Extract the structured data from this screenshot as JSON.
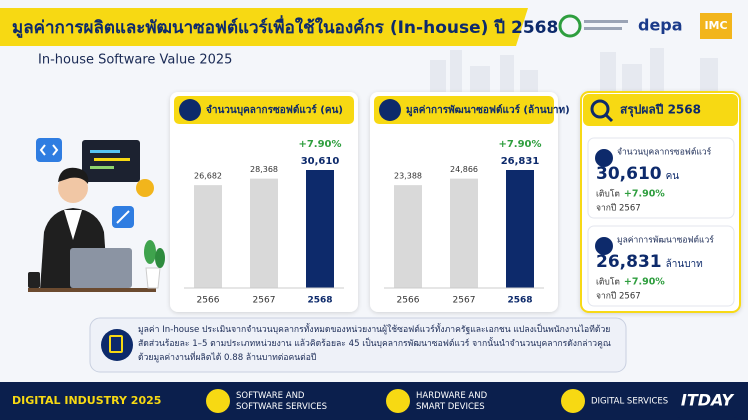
{
  "header": {
    "title": "มูลค่าการผลิตและพัฒนาซอฟต์แวร์เพื่อใช้ในองค์กร (In-house) ปี 2568",
    "subtitle": "In-house Software Value 2025",
    "logos": [
      "depa",
      "IMC"
    ]
  },
  "chart_data": [
    {
      "type": "bar",
      "title": "จำนวนบุคลากรซอฟต์แวร์ (คน)",
      "categories": [
        "2566",
        "2567",
        "2568"
      ],
      "values": [
        26682,
        28368,
        30610
      ],
      "value_labels": [
        "26,682",
        "28,368",
        "30,610"
      ],
      "colors": [
        "#d9d9d9",
        "#d9d9d9",
        "#0d2a6b"
      ],
      "annotation": "+7.90%"
    },
    {
      "type": "bar",
      "title": "มูลค่าการพัฒนาซอฟต์แวร์ (ล้านบาท)",
      "categories": [
        "2566",
        "2567",
        "2568"
      ],
      "values": [
        23388,
        24866,
        26831
      ],
      "value_labels": [
        "23,388",
        "24,866",
        "26,831"
      ],
      "colors": [
        "#d9d9d9",
        "#d9d9d9",
        "#0d2a6b"
      ],
      "annotation": "+7.90%"
    }
  ],
  "summary": {
    "title": "สรุปผลปี 2568",
    "items": [
      {
        "label": "จำนวนบุคลากรซอฟต์แวร์",
        "value": "30,610",
        "unit": "คน",
        "growth_label": "เติบโต",
        "growth": "+7.90%",
        "note": "จากปี 2567"
      },
      {
        "label": "มูลค่าการพัฒนาซอฟต์แวร์",
        "value": "26,831",
        "unit": "ล้านบาท",
        "growth_label": "เติบโต",
        "growth": "+7.90%",
        "note": "จากปี 2567"
      }
    ]
  },
  "note": "มูลค่า In-house ประเมินจากจำนวนบุคลากรทั้งหมดของหน่วยงานผู้ใช้ซอฟต์แวร์ทั้งภาครัฐและเอกชน แปลงเป็นพนักงานไอทีด้วยสัดส่วนร้อยละ 1–5 ตามประเภทหน่วยงาน แล้วคิดร้อยละ 45 เป็นบุคลากรพัฒนาซอฟต์แวร์ จากนั้นนำจำนวนบุคลากรดังกล่าวคูณด้วยมูลค่างานที่ผลิตได้ 0.88 ล้านบาทต่อคนต่อปี",
  "footer": {
    "brand": "DIGITAL INDUSTRY 2025",
    "items": [
      {
        "lines": [
          "SOFTWARE AND",
          "SOFTWARE SERVICES"
        ]
      },
      {
        "lines": [
          "HARDWARE AND",
          "SMART DEVICES"
        ]
      },
      {
        "lines": [
          "DIGITAL SERVICES"
        ]
      }
    ],
    "badge": "ITDAY"
  }
}
